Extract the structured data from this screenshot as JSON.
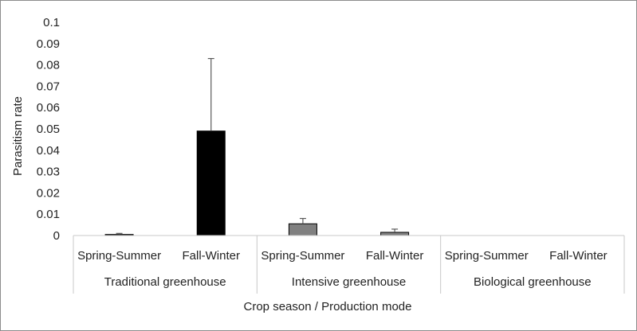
{
  "chart_data": {
    "type": "bar",
    "title": "",
    "ylabel": "Parasitism rate",
    "xlabel": "Crop season / Production mode",
    "ylim": [
      0,
      0.1
    ],
    "yticks": [
      "0",
      "0.01",
      "0.02",
      "0.03",
      "0.04",
      "0.05",
      "0.06",
      "0.07",
      "0.08",
      "0.09",
      "0.1"
    ],
    "ytick_values": [
      0,
      0.01,
      0.02,
      0.03,
      0.04,
      0.05,
      0.06,
      0.07,
      0.08,
      0.09,
      0.1
    ],
    "grid": false,
    "legend": "none",
    "groups": [
      {
        "label": "Traditional greenhouse",
        "categories": [
          {
            "label": "Spring-Summer",
            "value": 0.0005,
            "error": 0.0005,
            "color": "#1a1a1a"
          },
          {
            "label": "Fall-Winter",
            "value": 0.049,
            "error": 0.034,
            "color": "#000000"
          }
        ]
      },
      {
        "label": "Intensive greenhouse",
        "categories": [
          {
            "label": "Spring-Summer",
            "value": 0.0055,
            "error": 0.0025,
            "color": "#808080"
          },
          {
            "label": "Fall-Winter",
            "value": 0.0015,
            "error": 0.0015,
            "color": "#808080"
          }
        ]
      },
      {
        "label": "Biological greenhouse",
        "categories": [
          {
            "label": "Spring-Summer",
            "value": 0,
            "error": 0,
            "color": "#808080"
          },
          {
            "label": "Fall-Winter",
            "value": 0,
            "error": 0,
            "color": "#808080"
          }
        ]
      }
    ]
  }
}
